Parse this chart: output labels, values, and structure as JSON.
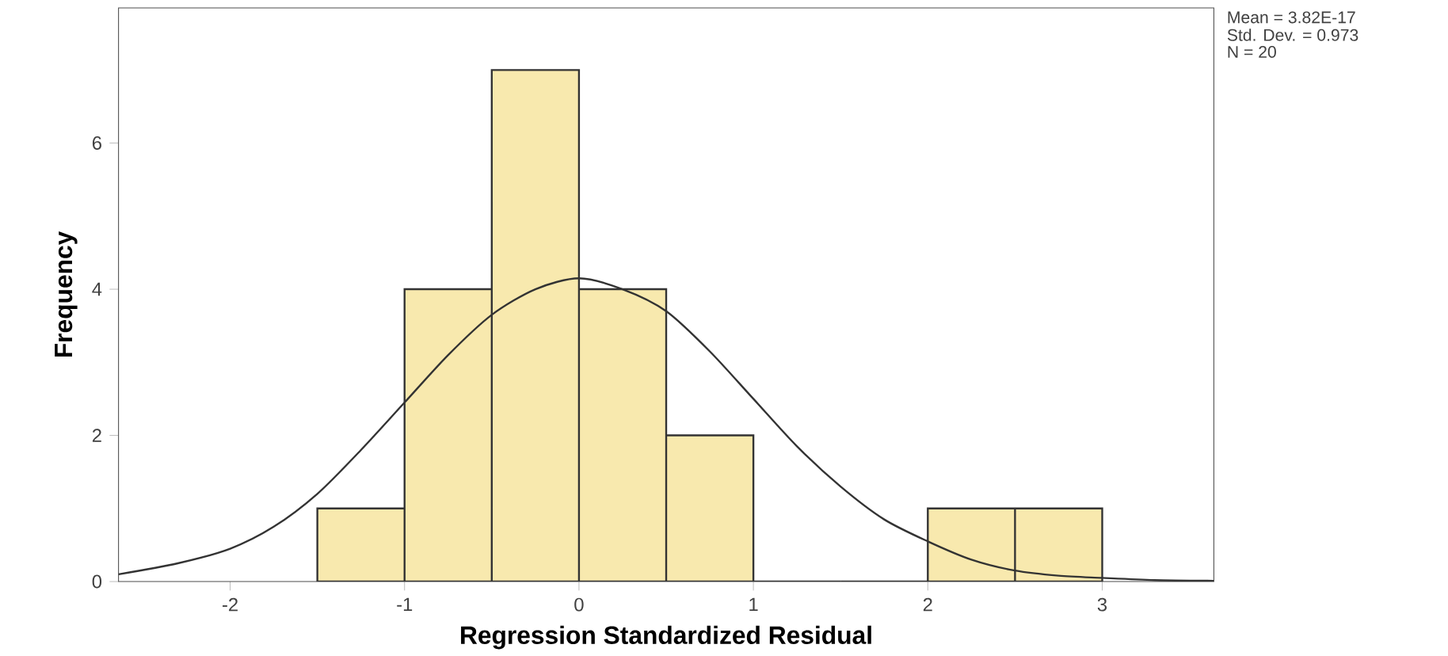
{
  "chart_data": {
    "type": "histogram",
    "xlabel": "Regression Standardized Residual",
    "ylabel": "Frequency",
    "bins": [
      -1.5,
      -1,
      -0.5,
      0,
      0.5,
      1,
      1.5,
      2,
      2.5,
      3
    ],
    "values": [
      1,
      4,
      7,
      4,
      2,
      0,
      0,
      1,
      1
    ],
    "color": "#f8e9ae",
    "series": [
      {
        "type": "line",
        "color": "#333333",
        "x": [
          -2.64,
          -2.3,
          -2,
          -1.75,
          -1.5,
          -1.25,
          -1,
          -0.75,
          -0.5,
          -0.25,
          0,
          0.25,
          0.5,
          0.75,
          1,
          1.25,
          1.5,
          1.75,
          2,
          2.25,
          2.5,
          2.75,
          3,
          3.3,
          3.64
        ],
        "values": [
          0.1,
          0.25,
          0.45,
          0.75,
          1.2,
          1.8,
          2.45,
          3.1,
          3.65,
          4.0,
          4.15,
          4.0,
          3.7,
          3.15,
          2.5,
          1.85,
          1.3,
          0.85,
          0.55,
          0.3,
          0.15,
          0.08,
          0.05,
          0.02,
          0.01
        ]
      }
    ],
    "xlim": [
      -2.64,
      3.64
    ],
    "ylim": [
      0,
      7.85
    ],
    "xticks": [
      -2,
      -1,
      0,
      1,
      2,
      3
    ],
    "yticks": [
      0,
      2,
      4,
      6
    ],
    "annotations": [
      "Mean = 3.82E-17",
      "Std. Dev. = 0.973",
      "N = 20"
    ]
  }
}
